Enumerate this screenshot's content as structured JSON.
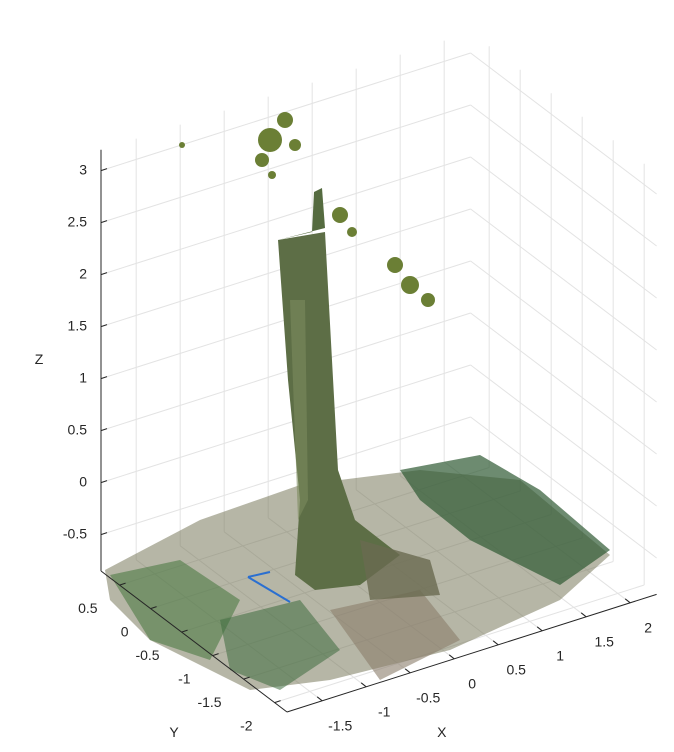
{
  "chart_data": {
    "type": "scatter3d",
    "xlabel": "X",
    "ylabel": "Y",
    "zlabel": "Z",
    "xlim": [
      -1.9,
      2.3
    ],
    "ylim": [
      -2.2,
      0.8
    ],
    "zlim": [
      -0.85,
      3.2
    ],
    "xticks": [
      -1.5,
      -1,
      -0.5,
      0,
      0.5,
      1,
      1.5,
      2
    ],
    "yticks": [
      -2,
      -1.5,
      -1,
      -0.5,
      0,
      0.5
    ],
    "zticks": [
      -0.5,
      0,
      0.5,
      1,
      1.5,
      2,
      2.5,
      3
    ],
    "grid": true
  }
}
